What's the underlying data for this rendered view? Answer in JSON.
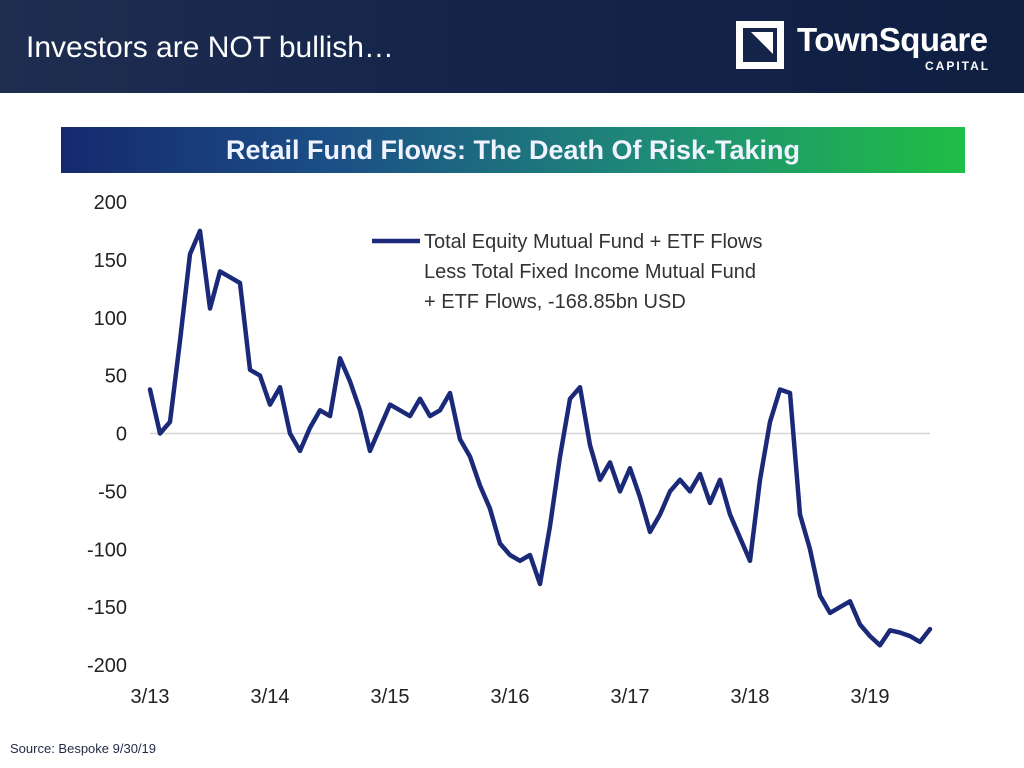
{
  "slide": {
    "title": "Investors are NOT bullish…",
    "source": "Source: Bespoke 9/30/19"
  },
  "logo": {
    "name": "TownSquare",
    "sub": "CAPITAL",
    "icon": "townsquare-logo-mark"
  },
  "colors": {
    "header_bg": "#15254a",
    "line": "#1b2a78",
    "banner_left": "#16296e",
    "banner_right": "#1fbe45"
  },
  "chart_data": {
    "type": "line",
    "title": "Retail Fund Flows: The Death Of Risk-Taking",
    "xlabel": "",
    "ylabel": "",
    "ylim": [
      -200,
      200
    ],
    "yticks": [
      200,
      150,
      100,
      50,
      0,
      -50,
      -100,
      -150,
      -200
    ],
    "xticks": [
      "3/13",
      "3/14",
      "3/15",
      "3/16",
      "3/17",
      "3/18",
      "3/19"
    ],
    "grid": false,
    "zero_line": true,
    "legend": {
      "position": "top-right",
      "lines": [
        "Total Equity Mutual Fund + ETF Flows",
        "Less Total Fixed Income Mutual Fund",
        "+ ETF Flows, -168.85bn USD"
      ]
    },
    "series": [
      {
        "x": [
          "2013-03",
          "2013-04",
          "2013-05",
          "2013-06",
          "2013-07",
          "2013-08",
          "2013-09",
          "2013-10",
          "2013-11",
          "2013-12",
          "2014-01",
          "2014-02",
          "2014-03",
          "2014-04",
          "2014-05",
          "2014-06",
          "2014-07",
          "2014-08",
          "2014-09",
          "2014-10",
          "2014-11",
          "2014-12",
          "2015-01",
          "2015-02",
          "2015-03",
          "2015-04",
          "2015-05",
          "2015-06",
          "2015-07",
          "2015-08",
          "2015-09",
          "2015-10",
          "2015-11",
          "2015-12",
          "2016-01",
          "2016-02",
          "2016-03",
          "2016-04",
          "2016-05",
          "2016-06",
          "2016-07",
          "2016-08",
          "2016-09",
          "2016-10",
          "2016-11",
          "2016-12",
          "2017-01",
          "2017-02",
          "2017-03",
          "2017-04",
          "2017-05",
          "2017-06",
          "2017-07",
          "2017-08",
          "2017-09",
          "2017-10",
          "2017-11",
          "2017-12",
          "2018-01",
          "2018-02",
          "2018-03",
          "2018-04",
          "2018-05",
          "2018-06",
          "2018-07",
          "2018-08",
          "2018-09",
          "2018-10",
          "2018-11",
          "2018-12",
          "2019-01",
          "2019-02",
          "2019-03",
          "2019-04",
          "2019-05",
          "2019-06",
          "2019-07",
          "2019-08",
          "2019-09"
        ],
        "y": [
          38,
          0,
          10,
          80,
          155,
          175,
          108,
          140,
          135,
          130,
          55,
          50,
          25,
          40,
          0,
          -15,
          5,
          20,
          15,
          65,
          45,
          20,
          -15,
          5,
          25,
          20,
          15,
          30,
          15,
          20,
          35,
          -5,
          -20,
          -45,
          -65,
          -95,
          -105,
          -110,
          -105,
          -130,
          -80,
          -20,
          30,
          40,
          -10,
          -40,
          -25,
          -50,
          -30,
          -55,
          -85,
          -70,
          -50,
          -40,
          -50,
          -35,
          -60,
          -40,
          -70,
          -90,
          -110,
          -40,
          10,
          38,
          35,
          -70,
          -100,
          -140,
          -155,
          -150,
          -145,
          -165,
          -175,
          -183,
          -170,
          -172,
          -175,
          -180,
          -169
        ]
      }
    ]
  }
}
